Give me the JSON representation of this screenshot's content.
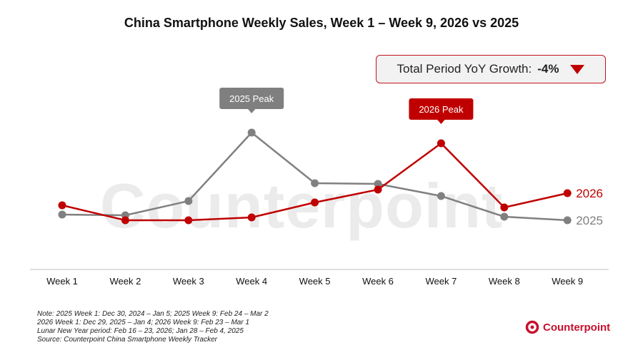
{
  "chart_data": {
    "type": "line",
    "title": "China Smartphone Weekly Sales, Week 1 – Week 9, 2026 vs 2025",
    "categories": [
      "Week 1",
      "Week 2",
      "Week 3",
      "Week 4",
      "Week 5",
      "Week 6",
      "Week 7",
      "Week 8",
      "Week 9"
    ],
    "ylim": [
      0,
      240
    ],
    "grid": false,
    "series": [
      {
        "name": "2026",
        "color": "#c00000",
        "values": [
          90,
          69,
          69,
          73,
          94,
          112,
          177,
          87,
          107
        ]
      },
      {
        "name": "2025",
        "color": "#808080",
        "values": [
          77,
          76,
          96,
          192,
          121,
          120,
          103,
          74,
          69
        ]
      }
    ],
    "annotations": [
      {
        "text": "2025 Peak",
        "series": "2025",
        "category": "Week 4",
        "color": "#7f7f7f"
      },
      {
        "text": "2026 Peak",
        "series": "2026",
        "category": "Week 7",
        "color": "#c00000"
      }
    ]
  },
  "yoy": {
    "label": "Total Period YoY Growth:",
    "value": "-4%",
    "direction": "down"
  },
  "notes": [
    "Note: 2025 Week 1: Dec 30, 2024 – Jan 5; 2025 Week 9: Feb 24 – Mar 2",
    "2026 Week 1: Dec 29, 2025 – Jan 4; 2026 Week 9: Feb 23 – Mar 1",
    "Lunar New Year period: Feb 16 – 23, 2026; Jan 28 – Feb 4, 2025",
    "Source: Counterpoint China Smartphone Weekly Tracker"
  ],
  "logo": {
    "text": "Counterpoint"
  },
  "watermark": "Counterpoint"
}
